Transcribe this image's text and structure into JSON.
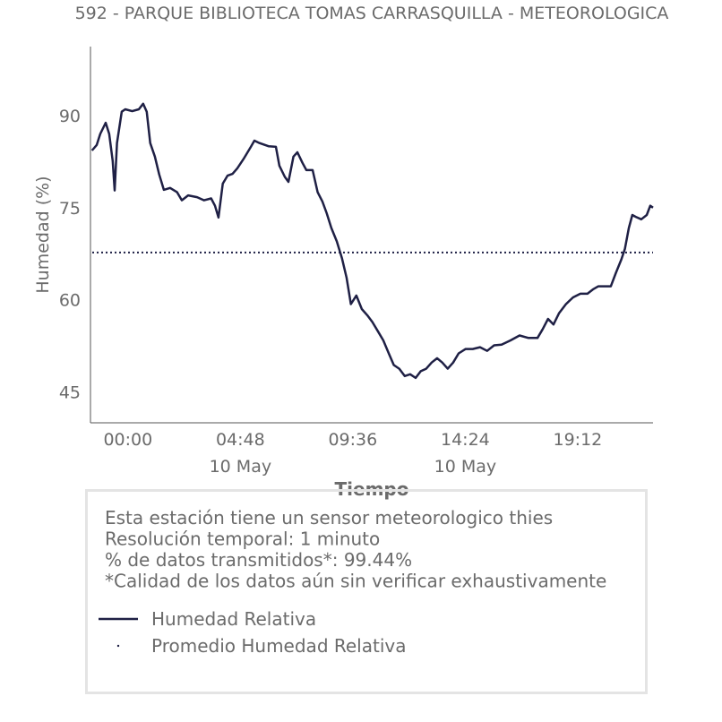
{
  "chart_data": {
    "type": "line",
    "title": "592 - PARQUE BIBLIOTECA TOMAS CARRASQUILLA - METEOROLOGICA",
    "xlabel": "Tiempo",
    "ylabel": "Humedad (%)",
    "x": [
      "09 May 22:28",
      "09 May 22:40",
      "09 May 22:49",
      "09 May 23:03",
      "09 May 23:12",
      "09 May 23:21",
      "09 May 23:26",
      "09 May 23:32",
      "09 May 23:44",
      "09 May 23:53",
      "10 May 00:11",
      "10 May 00:28",
      "10 May 00:39",
      "10 May 00:48",
      "10 May 00:57",
      "10 May 01:09",
      "10 May 01:20",
      "10 May 01:32",
      "10 May 01:48",
      "10 May 02:06",
      "10 May 02:18",
      "10 May 02:34",
      "10 May 02:57",
      "10 May 03:15",
      "10 May 03:33",
      "10 May 03:43",
      "10 May 03:52",
      "10 May 04:03",
      "10 May 04:15",
      "10 May 04:28",
      "10 May 04:40",
      "10 May 04:56",
      "10 May 05:14",
      "10 May 05:24",
      "10 May 05:37",
      "10 May 06:00",
      "10 May 06:19",
      "10 May 06:28",
      "10 May 06:42",
      "10 May 06:51",
      "10 May 07:04",
      "10 May 07:14",
      "10 May 07:27",
      "10 May 07:37",
      "10 May 07:53",
      "10 May 08:06",
      "10 May 08:18",
      "10 May 08:29",
      "10 May 08:41",
      "10 May 08:55",
      "10 May 09:08",
      "10 May 09:20",
      "10 May 09:31",
      "10 May 09:45",
      "10 May 09:59",
      "10 May 10:13",
      "10 May 10:26",
      "10 May 10:40",
      "10 May 10:54",
      "10 May 11:08",
      "10 May 11:21",
      "10 May 11:35",
      "10 May 11:49",
      "10 May 12:03",
      "10 May 12:17",
      "10 May 12:30",
      "10 May 12:44",
      "10 May 12:58",
      "10 May 13:12",
      "10 May 13:25",
      "10 May 13:39",
      "10 May 13:53",
      "10 May 14:07",
      "10 May 14:25",
      "10 May 14:43",
      "10 May 15:02",
      "10 May 15:20",
      "10 May 15:38",
      "10 May 15:57",
      "10 May 16:20",
      "10 May 16:43",
      "10 May 17:06",
      "10 May 17:29",
      "10 May 17:42",
      "10 May 17:56",
      "10 May 18:10",
      "10 May 18:24",
      "10 May 18:42",
      "10 May 19:00",
      "10 May 19:19",
      "10 May 19:37",
      "10 May 19:51",
      "10 May 20:05",
      "10 May 20:23",
      "10 May 20:37",
      "10 May 20:50",
      "10 May 21:04",
      "10 May 21:13",
      "10 May 21:23",
      "10 May 21:32",
      "10 May 21:41",
      "10 May 21:55",
      "10 May 22:09",
      "10 May 22:18",
      "10 May 22:25"
    ],
    "series": [
      {
        "name": "Humedad Relativa",
        "color": "#1f2045",
        "values": [
          84.3,
          85.2,
          87,
          88.8,
          87,
          82.6,
          77.8,
          85.5,
          90.6,
          91,
          90.7,
          91,
          91.9,
          90.6,
          85.5,
          83.3,
          80.4,
          77.9,
          78.2,
          77.5,
          76.2,
          77,
          76.7,
          76.2,
          76.5,
          75.3,
          73.4,
          78.9,
          80.2,
          80.5,
          81.4,
          82.9,
          84.8,
          85.9,
          85.5,
          85,
          84.9,
          81.8,
          80,
          79.2,
          83.3,
          84,
          82.3,
          81.1,
          81.1,
          77.5,
          76,
          74.1,
          71.7,
          69.5,
          66.8,
          63.6,
          59.3,
          60.7,
          58.5,
          57.5,
          56.4,
          54.9,
          53.4,
          51.3,
          49.4,
          48.8,
          47.6,
          47.9,
          47.3,
          48.4,
          48.8,
          49.8,
          50.5,
          49.8,
          48.8,
          49.8,
          51.3,
          52,
          52,
          52.3,
          51.7,
          52.6,
          52.7,
          53.4,
          54.2,
          53.8,
          53.8,
          55.2,
          56.9,
          56,
          57.8,
          59.3,
          60.4,
          61,
          61,
          61.7,
          62.2,
          62.2,
          62.2,
          64.4,
          66.6,
          68.3,
          71.7,
          73.8,
          73.5,
          73.1,
          73.8,
          75.3,
          75
        ]
      }
    ],
    "reference_line": {
      "name": "Promedio Humedad Relativa",
      "color": "#1f2045",
      "value": 67.7
    },
    "xlim": [
      "09 May 22:24",
      "10 May 22:25"
    ],
    "xticks": [
      {
        "value": "10 May 00:00",
        "label": "00:00"
      },
      {
        "value": "10 May 04:48",
        "label": "04:48\n10 May"
      },
      {
        "value": "10 May 09:36",
        "label": "09:36"
      },
      {
        "value": "10 May 14:24",
        "label": "14:24\n10 May"
      },
      {
        "value": "10 May 19:12",
        "label": "19:12"
      }
    ],
    "ylim": [
      40,
      101.2
    ],
    "yticks": [
      45,
      60,
      75,
      90
    ],
    "info_lines": [
      "Esta estación tiene un sensor meteorologico thies",
      "Resolución temporal: 1 minuto",
      "% de datos transmitidos*: 99.44%",
      "*Calidad de los datos aún sin verificar exhaustivamente"
    ]
  }
}
